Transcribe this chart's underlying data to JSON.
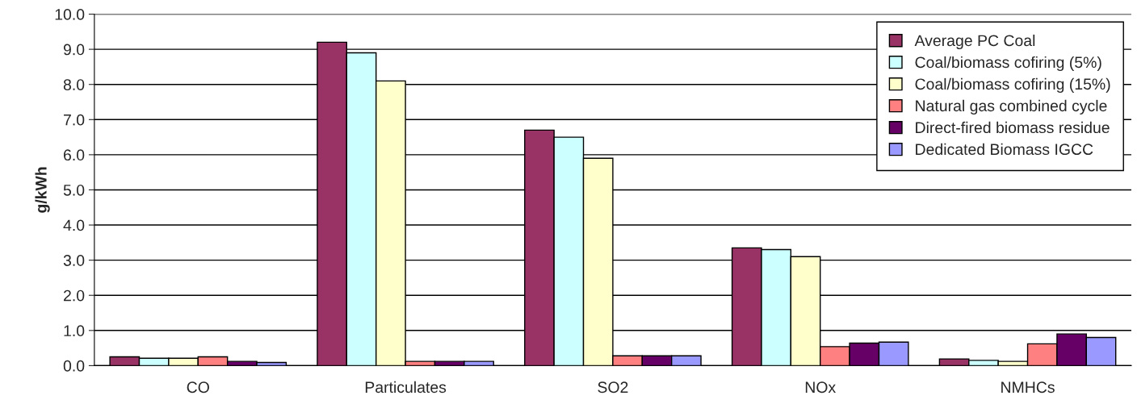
{
  "chart_data": {
    "type": "bar",
    "ylabel": "g/kWh",
    "categories": [
      "CO",
      "Particulates",
      "SO2",
      "NOx",
      "NMHCs"
    ],
    "series": [
      {
        "name": "Average PC Coal",
        "color": "#993366",
        "values": [
          0.25,
          9.2,
          6.7,
          3.35,
          0.19
        ]
      },
      {
        "name": "Coal/biomass cofiring (5%)",
        "color": "#ccffff",
        "values": [
          0.21,
          8.9,
          6.5,
          3.3,
          0.15
        ]
      },
      {
        "name": "Coal/biomass cofiring (15%)",
        "color": "#ffffcc",
        "values": [
          0.21,
          8.1,
          5.9,
          3.1,
          0.12
        ]
      },
      {
        "name": "Natural gas combined cycle",
        "color": "#ff8080",
        "values": [
          0.25,
          0.12,
          0.28,
          0.54,
          0.62
        ]
      },
      {
        "name": "Direct-fired biomass residue",
        "color": "#660066",
        "values": [
          0.12,
          0.12,
          0.28,
          0.64,
          0.9
        ]
      },
      {
        "name": "Dedicated Biomass IGCC",
        "color": "#9999ff",
        "values": [
          0.09,
          0.12,
          0.28,
          0.67,
          0.8
        ]
      }
    ],
    "ylim": [
      0,
      10
    ],
    "yticks": [
      {
        "value": 0,
        "label": "0.0"
      },
      {
        "value": 1,
        "label": "1.0"
      },
      {
        "value": 2,
        "label": "2.0"
      },
      {
        "value": 3,
        "label": "3.0"
      },
      {
        "value": 4,
        "label": "4.0"
      },
      {
        "value": 5,
        "label": "5.0"
      },
      {
        "value": 6,
        "label": "6.0"
      },
      {
        "value": 7,
        "label": "7.0"
      },
      {
        "value": 8,
        "label": "8.0"
      },
      {
        "value": 9,
        "label": "9.0"
      },
      {
        "value": 10,
        "label": "10.0"
      }
    ],
    "grid": "y",
    "legend": "top right"
  }
}
